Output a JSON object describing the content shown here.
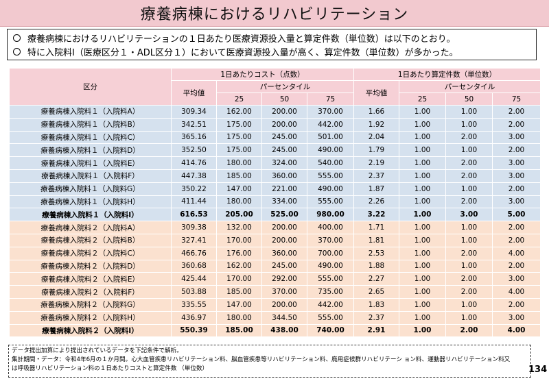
{
  "title": "療養病棟におけるリハビリテーション",
  "summary": [
    "療養病棟におけるリハビリテーションの１日あたり医療資源投入量と算定件数（単位数）は以下のとおり。",
    "特に入院料Ⅰ（医療区分１・ADL区分１）において医療資源投入量が高く、算定件数（単位数）が多かった。"
  ],
  "header": {
    "category": "区分",
    "cost_group": "1日あたりコスト（点数）",
    "count_group": "1日あたり算定件数（単位数）",
    "mean": "平均値",
    "percentile": "パーセンタイル",
    "p25": "25",
    "p50": "50",
    "p75": "75"
  },
  "rows": [
    {
      "label": "療養病棟入院料１（入院料A）",
      "group": 1,
      "total": false,
      "cells": [
        "309.34",
        "162.00",
        "200.00",
        "370.00",
        "1.66",
        "1.00",
        "1.00",
        "2.00"
      ]
    },
    {
      "label": "療養病棟入院料１（入院料B）",
      "group": 1,
      "total": false,
      "cells": [
        "342.51",
        "175.00",
        "200.00",
        "442.00",
        "1.92",
        "1.00",
        "1.00",
        "2.00"
      ]
    },
    {
      "label": "療養病棟入院料１（入院料C）",
      "group": 1,
      "total": false,
      "cells": [
        "365.16",
        "175.00",
        "245.00",
        "501.00",
        "2.04",
        "1.00",
        "2.00",
        "3.00"
      ]
    },
    {
      "label": "療養病棟入院料１（入院料D）",
      "group": 1,
      "total": false,
      "cells": [
        "352.50",
        "175.00",
        "245.00",
        "490.00",
        "1.79",
        "1.00",
        "1.00",
        "2.00"
      ]
    },
    {
      "label": "療養病棟入院料１（入院料E）",
      "group": 1,
      "total": false,
      "cells": [
        "414.76",
        "180.00",
        "324.00",
        "540.00",
        "2.19",
        "1.00",
        "2.00",
        "3.00"
      ]
    },
    {
      "label": "療養病棟入院料１（入院料F）",
      "group": 1,
      "total": false,
      "cells": [
        "447.38",
        "185.00",
        "360.00",
        "555.00",
        "2.37",
        "1.00",
        "2.00",
        "3.00"
      ]
    },
    {
      "label": "療養病棟入院料１（入院料G）",
      "group": 1,
      "total": false,
      "cells": [
        "350.22",
        "147.00",
        "221.00",
        "490.00",
        "1.87",
        "1.00",
        "1.00",
        "2.00"
      ]
    },
    {
      "label": "療養病棟入院料１（入院料H）",
      "group": 1,
      "total": false,
      "cells": [
        "411.44",
        "180.00",
        "334.00",
        "555.00",
        "2.26",
        "1.00",
        "2.00",
        "3.00"
      ]
    },
    {
      "label": "療養病棟入院料１（入院料I）",
      "group": 1,
      "total": true,
      "cells": [
        "616.53",
        "205.00",
        "525.00",
        "980.00",
        "3.22",
        "1.00",
        "3.00",
        "5.00"
      ]
    },
    {
      "label": "療養病棟入院料２（入院料A）",
      "group": 2,
      "total": false,
      "cells": [
        "309.38",
        "132.00",
        "200.00",
        "400.00",
        "1.71",
        "1.00",
        "1.00",
        "2.00"
      ]
    },
    {
      "label": "療養病棟入院料２（入院料B）",
      "group": 2,
      "total": false,
      "cells": [
        "327.41",
        "170.00",
        "200.00",
        "370.00",
        "1.81",
        "1.00",
        "1.00",
        "2.00"
      ]
    },
    {
      "label": "療養病棟入院料２（入院料C）",
      "group": 2,
      "total": false,
      "cells": [
        "466.76",
        "176.00",
        "360.00",
        "700.00",
        "2.53",
        "1.00",
        "2.00",
        "4.00"
      ]
    },
    {
      "label": "療養病棟入院料２（入院料D）",
      "group": 2,
      "total": false,
      "cells": [
        "360.68",
        "162.00",
        "245.00",
        "490.00",
        "1.88",
        "1.00",
        "1.00",
        "2.00"
      ]
    },
    {
      "label": "療養病棟入院料２（入院料E）",
      "group": 2,
      "total": false,
      "cells": [
        "425.44",
        "170.00",
        "292.00",
        "555.00",
        "2.27",
        "1.00",
        "2.00",
        "3.00"
      ]
    },
    {
      "label": "療養病棟入院料２（入院料F）",
      "group": 2,
      "total": false,
      "cells": [
        "503.88",
        "185.00",
        "370.00",
        "735.00",
        "2.65",
        "1.00",
        "2.00",
        "4.00"
      ]
    },
    {
      "label": "療養病棟入院料２（入院料G）",
      "group": 2,
      "total": false,
      "cells": [
        "335.55",
        "147.00",
        "200.00",
        "442.00",
        "1.83",
        "1.00",
        "1.00",
        "2.00"
      ]
    },
    {
      "label": "療養病棟入院料２（入院料H）",
      "group": 2,
      "total": false,
      "cells": [
        "436.97",
        "180.00",
        "344.50",
        "555.00",
        "2.37",
        "1.00",
        "1.00",
        "3.00"
      ]
    },
    {
      "label": "療養病棟入院料２（入院料I）",
      "group": 2,
      "total": true,
      "cells": [
        "550.39",
        "185.00",
        "438.00",
        "740.00",
        "2.91",
        "1.00",
        "2.00",
        "4.00"
      ]
    }
  ],
  "notes": [
    "データ提出加算により提出されているデータを下記条件で解析。",
    "集計期間・データ：令和4年6月の１か月間。心大血管疾患リハビリテーション料、脳血管疾患等リハビリテーション料、廃用症候群リハビリテーシ ョン料、運動器リハビリテーション料又",
    "は呼吸器リハビリテーション料の１日あたりコストと算定件数 （単位数）"
  ],
  "page_number": "134",
  "colors": {
    "title_bg": "#f2c9cf",
    "header_bg": "#f6d0d6",
    "group1_bg": "#d5e1ee",
    "group2_bg": "#fbe1cf"
  }
}
